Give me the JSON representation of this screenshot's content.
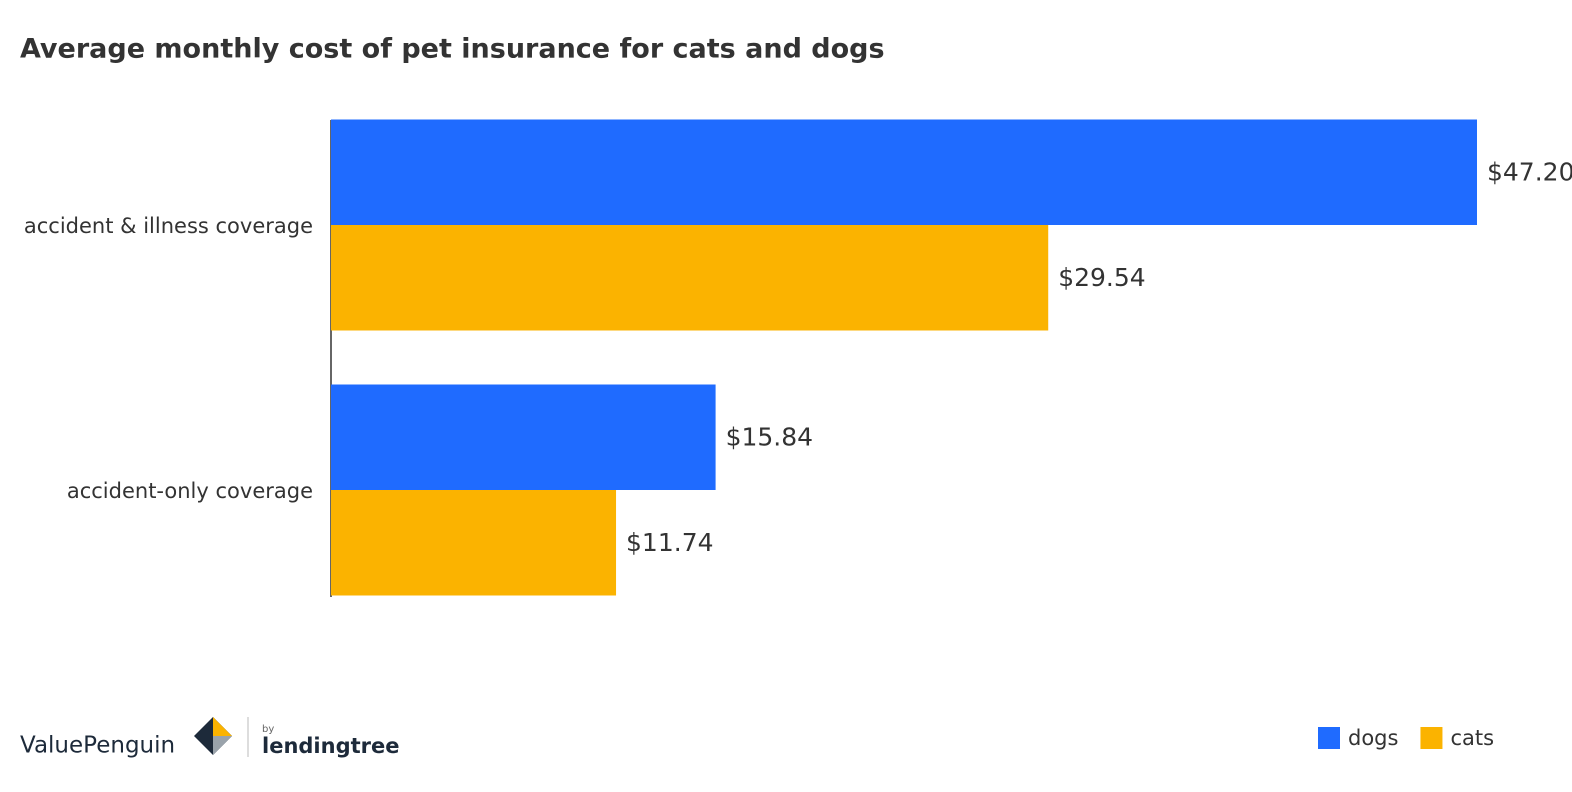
{
  "chart_data": {
    "type": "bar",
    "orientation": "horizontal",
    "title": "Average monthly cost of pet insurance for cats and dogs",
    "categories": [
      "accident & illness coverage",
      "accident-only coverage"
    ],
    "series": [
      {
        "name": "dogs",
        "color": "#1f6bff",
        "values": [
          47.2,
          15.84
        ],
        "value_labels": [
          "$47.20",
          "$15.84"
        ]
      },
      {
        "name": "cats",
        "color": "#fbb300",
        "values": [
          29.54,
          11.74
        ],
        "value_labels": [
          "$29.54",
          "$11.74"
        ]
      }
    ],
    "legend": "bottom-right",
    "logo": {
      "brand": "ValuePenguin",
      "by": "by",
      "partner": "lendingtree"
    }
  }
}
